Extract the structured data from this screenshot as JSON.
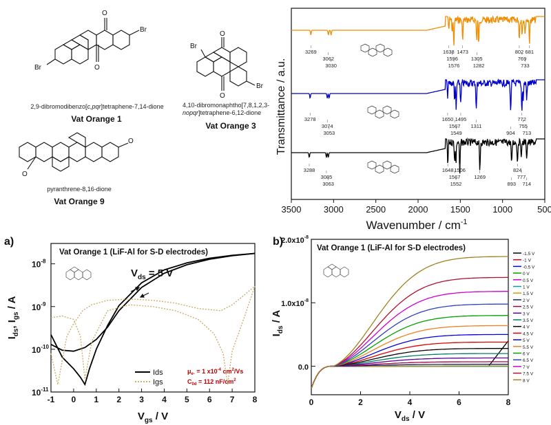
{
  "structures": [
    {
      "chem_name_pre": "2,9-dibromodibenzo[",
      "chem_name_ital": "c,pqr",
      "chem_name_post": "]tetraphene-7,14-dione",
      "vat_name": "Vat Orange 1",
      "substituents": [
        "Br",
        "Br"
      ]
    },
    {
      "chem_name_line1": "4,10-dibromonaphtho[7,8,1,2,3-",
      "chem_name_line2_ital": "nopqr",
      "chem_name_line2_post": "]tetraphene-6,12-dione",
      "vat_name": "Vat Orange 3",
      "substituents": [
        "Br",
        "Br"
      ]
    },
    {
      "chem_name": "pyranthrene-8,16-dione",
      "vat_name": "Vat Orange 9"
    }
  ],
  "panel_labels": {
    "a": "a)",
    "b": "b)"
  },
  "ir_spectrum": {
    "xlabel": "Wavenumber / cm",
    "xlabel_sup": "-1",
    "ylabel": "Transmittance / a.u.",
    "xticks": [
      "3500",
      "3000",
      "2500",
      "2000",
      "1500",
      "1000",
      "500"
    ],
    "colors": {
      "orange": "#f28c00",
      "blue": "#0000c8",
      "black": "#000000"
    }
  },
  "chart_data": [
    {
      "type": "line",
      "xlabel": "Wavenumber / cm-1",
      "ylabel": "Transmittance / a.u.",
      "xlim": [
        3500,
        500
      ],
      "xticks": [
        3500,
        3000,
        2500,
        2000,
        1500,
        1000,
        500
      ],
      "series": [
        {
          "name": "Vat Orange 1",
          "color": "#000000",
          "peaks": [
            3288,
            3085,
            3063,
            1648,
            1567,
            1552,
            1506,
            1269,
            893,
            824,
            777,
            714
          ]
        },
        {
          "name": "Vat Orange 3",
          "color": "#0000c8",
          "peaks": [
            3278,
            3074,
            3053,
            1650,
            1567,
            1549,
            1495,
            1311,
            904,
            772,
            755,
            713
          ]
        },
        {
          "name": "Vat Orange 9",
          "color": "#f28c00",
          "peaks": [
            3269,
            3062,
            3030,
            1638,
            1596,
            1576,
            1473,
            1305,
            1282,
            802,
            769,
            733,
            681
          ]
        }
      ],
      "peak_labels": {
        "orange": [
          "3269",
          "3062",
          "3030",
          "1638",
          "1596",
          "1576",
          "1473",
          "1305",
          "1282",
          "802",
          "769",
          "733",
          "681"
        ],
        "blue": [
          "3278",
          "3074",
          "3053",
          "1650",
          "1567",
          "1549",
          "1495",
          "1311",
          "904",
          "772",
          "755",
          "713"
        ],
        "black": [
          "3288",
          "3085",
          "3063",
          "1648",
          "1567",
          "1552",
          "1506",
          "1269",
          "893",
          "824",
          "777",
          "714"
        ]
      }
    },
    {
      "type": "line",
      "title": "Vat Orange 1 (LiF-Al for S-D electrodes)",
      "annotation": "V",
      "annotation_sub": "ds",
      "annotation_post": " = 5 V",
      "mobility_pre": "μ",
      "mobility_sub": "e-",
      "mobility_post": " = 1 x10",
      "mobility_exp": "-4",
      "mobility_unit": " cm",
      "mobility_unit_exp": "2",
      "mobility_unit_post": "/Vs",
      "cap_pre": "C",
      "cap_sub": "0d",
      "cap_post": " = 112 nF/cm",
      "cap_exp": "2",
      "xlabel": "V",
      "xlabel_sub": "gs",
      "xlabel_post": " / V",
      "ylabel": "I",
      "ylabel_sub1": "ds",
      "ylabel_mid": ", I",
      "ylabel_sub2": "gs",
      "ylabel_post": " / A",
      "xlim": [
        -1,
        8
      ],
      "ylim": [
        1e-11,
        3e-08
      ],
      "log_y": true,
      "xticks": [
        "-1",
        "0",
        "1",
        "2",
        "3",
        "4",
        "5",
        "6",
        "7",
        "8"
      ],
      "yticks": [
        {
          "base": "10",
          "exp": "-8"
        },
        {
          "base": "10",
          "exp": "-9"
        },
        {
          "base": "10",
          "exp": "-10"
        },
        {
          "base": "10",
          "exp": "-11"
        }
      ],
      "legend": [
        "Ids",
        "Igs"
      ],
      "series": [
        {
          "name": "Ids",
          "color": "#000000",
          "x": [
            -1,
            -0.5,
            0,
            0.3,
            0.5,
            0.7,
            1.0,
            1.5,
            2,
            3,
            4,
            5,
            6,
            7,
            8
          ],
          "y": [
            2.2e-10,
            6.5e-11,
            3.5e-11,
            2.2e-11,
            1.5e-11,
            3.5e-11,
            1e-10,
            3.6e-10,
            1.05e-09,
            3.6e-09,
            7.2e-09,
            1.05e-08,
            1.35e-08,
            1.58e-08,
            1.75e-08
          ]
        },
        {
          "name": "Ids",
          "color": "#000000",
          "x": [
            -1,
            -0.5,
            0,
            0.5,
            1.0,
            1.5,
            2,
            3,
            4,
            5,
            6,
            7,
            8
          ],
          "y": [
            1.3e-10,
            9.5e-11,
            9e-11,
            1.1e-10,
            1.7e-10,
            3.3e-10,
            8e-10,
            2.8e-09,
            6e-09,
            9.5e-09,
            1.28e-08,
            1.55e-08,
            1.75e-08
          ]
        },
        {
          "name": "Igs",
          "color": "#c8b070",
          "x": [
            -1,
            -0.5,
            0,
            0.3,
            0.5,
            0.8,
            1.5,
            2.5,
            3.5,
            4.5,
            5.5,
            6.2,
            6.6,
            6.8,
            7.0,
            7.5,
            8
          ],
          "y": [
            5.5e-10,
            6e-10,
            5e-10,
            2e-10,
            2e-11,
            1.5e-10,
            8e-10,
            1.1e-09,
            1e-09,
            8e-10,
            5e-10,
            2.3e-10,
            8e-11,
            1.5e-11,
            9e-11,
            5e-10,
            3e-09
          ]
        },
        {
          "name": "Igs",
          "color": "#c8b070",
          "x": [
            -1,
            -0.7,
            -0.3,
            0,
            0.4,
            0.8,
            1.5,
            2.5,
            3.5,
            4.5,
            5.5,
            6.5,
            7,
            7.5,
            8
          ],
          "y": [
            8e-11,
            1.5e-11,
            2e-10,
            4e-10,
            8e-10,
            1.1e-09,
            1.4e-09,
            1.5e-09,
            1.4e-09,
            1.2e-09,
            9e-10,
            8e-10,
            1.1e-09,
            1.8e-09,
            3e-09
          ]
        }
      ]
    },
    {
      "type": "line",
      "title": "Vat Orange 1 (LiF-Al for S-D electrodes)",
      "xlabel": "V",
      "xlabel_sub": "ds",
      "xlabel_post": " / V",
      "ylabel": "I",
      "ylabel_sub": "ds",
      "ylabel_post": " / A",
      "xlim": [
        0,
        8
      ],
      "ylim": [
        -4.5e-09,
        2e-08
      ],
      "xticks": [
        "0",
        "2",
        "4",
        "6",
        "8"
      ],
      "yticks": [
        {
          "base": "2.0x10",
          "exp": "-8",
          "v": 2e-08
        },
        {
          "base": "1.0x10",
          "exp": "-8",
          "v": 1e-08
        },
        {
          "base": "0.0",
          "exp": "",
          "v": 0
        }
      ],
      "legend_labels": [
        "-1.5 V",
        "-1 V",
        "-0.5 V",
        "0 V",
        "0.5 V",
        "1 V",
        "1.5 V",
        "2 V",
        "2.5 V",
        "3 V",
        "3.5 V",
        "4 V",
        "4.5 V",
        "5 V",
        "5.5 V",
        "6 V",
        "6.5 V",
        "7 V",
        "7.5 V",
        "8 V"
      ],
      "series_colors": [
        "#000000",
        "#e00000",
        "#0000e0",
        "#00a000",
        "#d000d0",
        "#00a0a0",
        "#d0a000",
        "#102080",
        "#a00040",
        "#5a0098",
        "#008060",
        "#000000",
        "#e00000",
        "#0000e0",
        "#f08020",
        "#00a000",
        "#3040c0",
        "#d000d0",
        "#b01030",
        "#a08020"
      ],
      "saturation_currents": [
        0,
        0,
        0,
        0,
        0,
        0,
        5e-11,
        3e-10,
        7e-10,
        1.3e-09,
        2e-09,
        2.8e-09,
        3.8e-09,
        5e-09,
        6.4e-09,
        8e-09,
        9.8e-09,
        1.18e-08,
        1.4e-08,
        1.73e-08
      ]
    }
  ]
}
